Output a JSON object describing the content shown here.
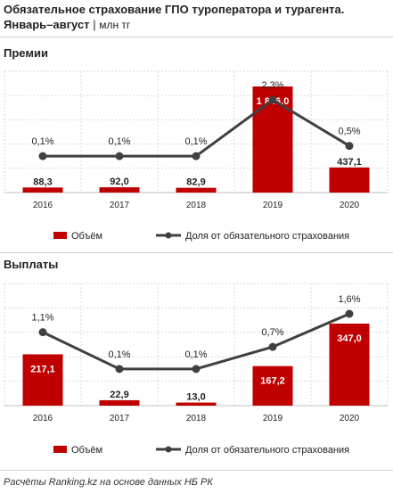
{
  "header": {
    "title": "Обязательное страхование ГПО туроператора и турагента.",
    "period": "Январь–август",
    "separator": "|",
    "unit": "млн тг"
  },
  "source": "Расчёты Ranking.kz на основе данных НБ РК",
  "colors": {
    "bar": "#c00000",
    "line": "#404040",
    "grid": "#d9d9d9",
    "text": "#222222"
  },
  "chart_data": [
    {
      "type": "bar",
      "title": "Премии",
      "categories": [
        "2016",
        "2017",
        "2018",
        "2019",
        "2020"
      ],
      "series": [
        {
          "name": "Объём",
          "type": "bar",
          "values": [
            88.3,
            92.0,
            82.9,
            1846.0,
            437.1
          ],
          "labels": [
            "88,3",
            "92,0",
            "82,9",
            "1 846,0",
            "437,1"
          ]
        },
        {
          "name": "Доля от обязательного страхования",
          "type": "line",
          "values": [
            0.1,
            0.1,
            0.1,
            2.3,
            0.5
          ],
          "labels": [
            "0,1%",
            "0,1%",
            "0,1%",
            "2,3%",
            "0,5%"
          ]
        }
      ],
      "legend": "bottom",
      "grid": true
    },
    {
      "type": "bar",
      "title": "Выплаты",
      "categories": [
        "2016",
        "2017",
        "2018",
        "2019",
        "2020"
      ],
      "series": [
        {
          "name": "Объём",
          "type": "bar",
          "values": [
            217.1,
            22.9,
            13.0,
            167.2,
            347.0
          ],
          "labels": [
            "217,1",
            "22,9",
            "13,0",
            "167,2",
            "347,0"
          ]
        },
        {
          "name": "Доля от обязательного страхования",
          "type": "line",
          "values": [
            1.1,
            0.1,
            0.1,
            0.7,
            1.6
          ],
          "labels": [
            "1,1%",
            "0,1%",
            "0,1%",
            "0,7%",
            "1,6%"
          ]
        }
      ],
      "legend": "bottom",
      "grid": true
    }
  ]
}
